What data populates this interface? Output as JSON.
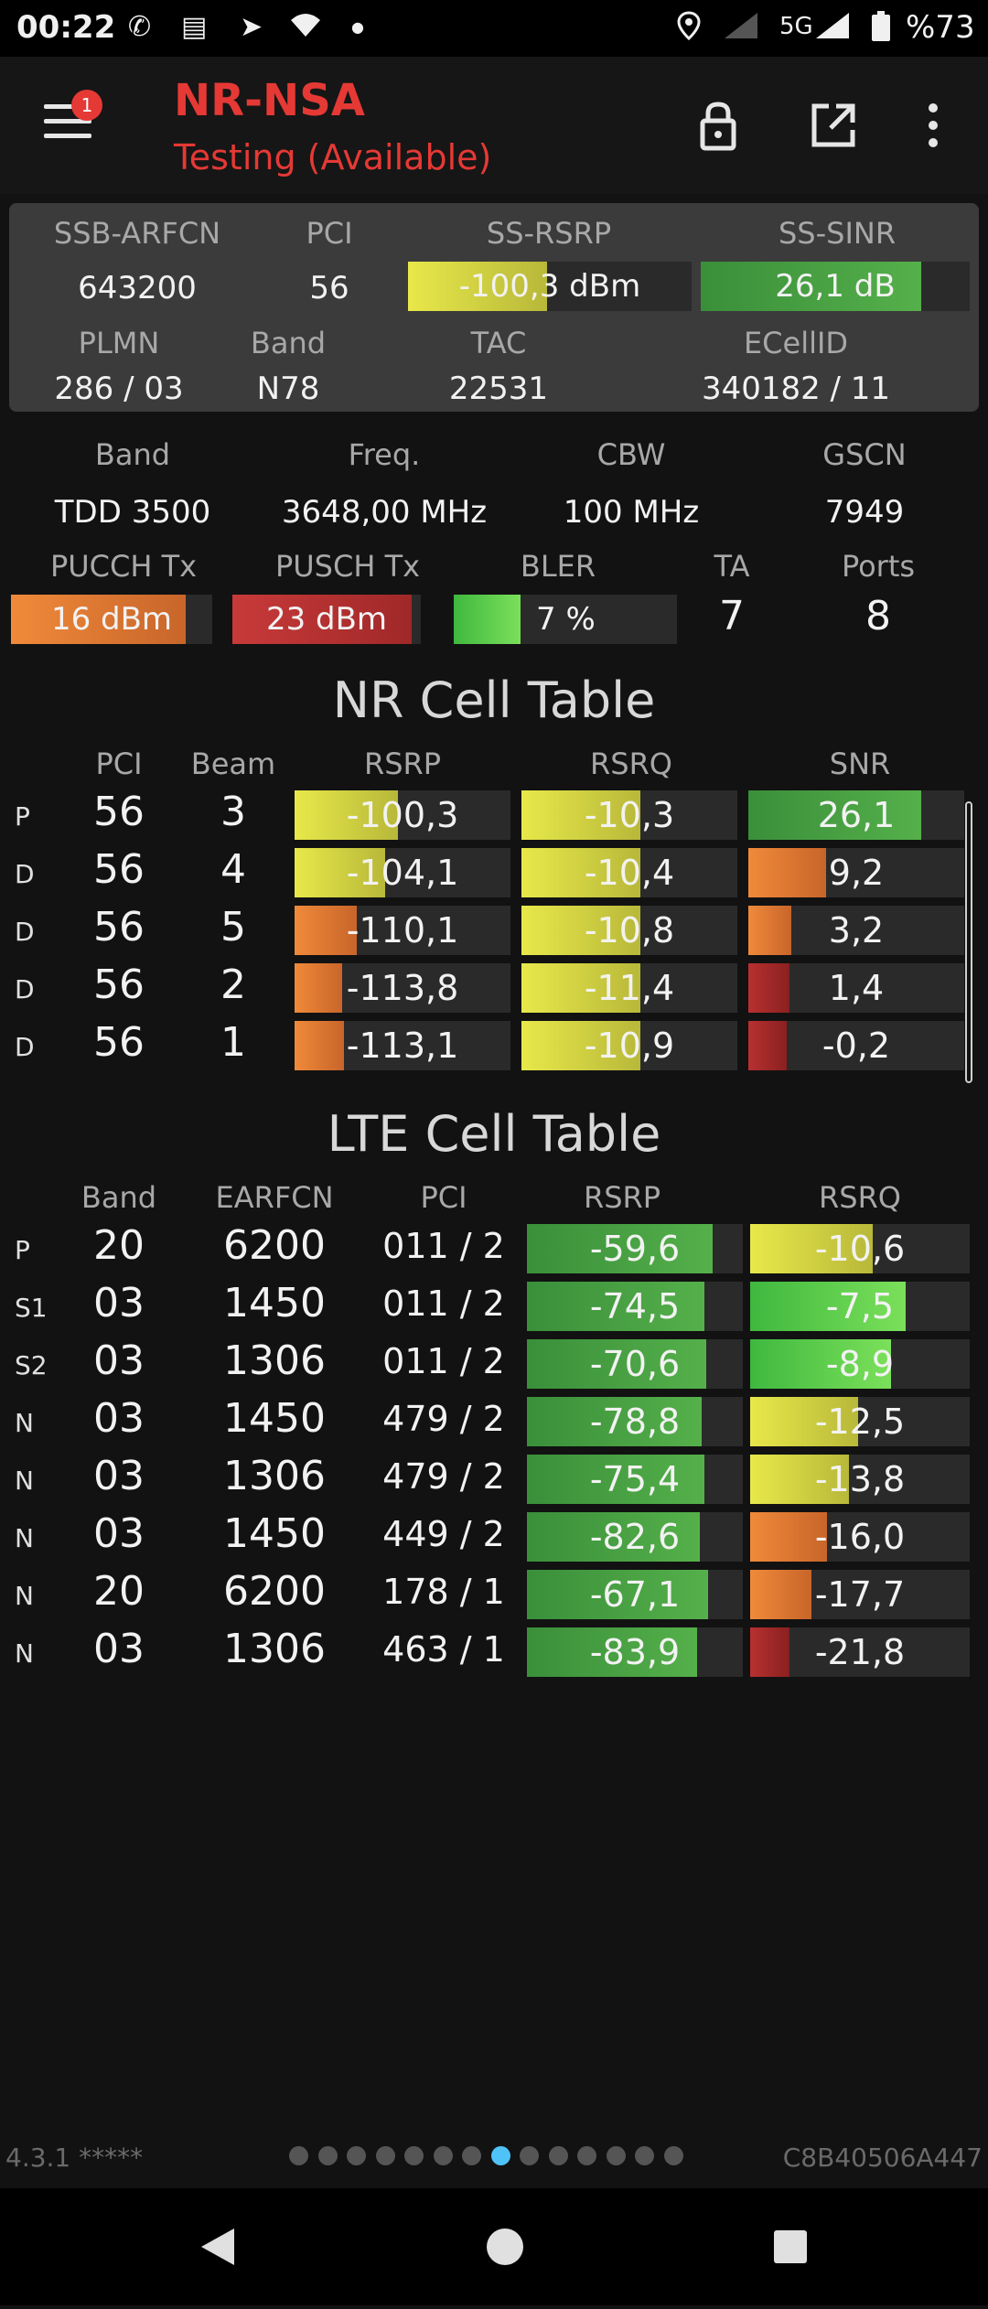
{
  "status": {
    "time": "00:22",
    "net": "5G",
    "battery": "%73"
  },
  "app": {
    "title": "NR-NSA",
    "subtitle": "Testing (Available)",
    "badge": "1"
  },
  "summary": {
    "labels": [
      "SSB-ARFCN",
      "PCI",
      "SS-RSRP",
      "SS-SINR",
      "PLMN",
      "Band",
      "TAC",
      "ECellID"
    ],
    "ssb_arfcn": "643200",
    "pci": "56",
    "ss_rsrp": "-100,3 dBm",
    "ss_sinr": "26,1 dB",
    "plmn": "286 / 03",
    "band": "N78",
    "tac": "22531",
    "ecellid": "340182 / 11",
    "ss_rsrp_level": 0.49,
    "ss_sinr_level": 0.82
  },
  "radio": {
    "labels": [
      "Band",
      "Freq.",
      "CBW",
      "GSCN",
      "PUCCH Tx",
      "PUSCH Tx",
      "BLER",
      "TA",
      "Ports"
    ],
    "band": "TDD 3500",
    "freq": "3648,00 MHz",
    "cbw": "100 MHz",
    "gscn": "7949",
    "pucch": "16 dBm",
    "pusch": "23 dBm",
    "bler": "7 %",
    "ta": "7",
    "ports": "8",
    "pucch_level": 0.87,
    "pusch_level": 0.95,
    "bler_level": 0.3
  },
  "nr_table": {
    "title": "NR Cell Table",
    "headers": [
      "PCI",
      "Beam",
      "RSRP",
      "RSRQ",
      "SNR"
    ],
    "rows": [
      {
        "tag": "P",
        "pci": "56",
        "beam": "3",
        "rsrp": "-100,3",
        "rsrq": "-10,3",
        "snr": "26,1",
        "rsrp_level": 0.48,
        "rsrq_level": 0.55,
        "snr_level": 0.8
      },
      {
        "tag": "D",
        "pci": "56",
        "beam": "4",
        "rsrp": "-104,1",
        "rsrq": "-10,4",
        "snr": "9,2",
        "rsrp_level": 0.42,
        "rsrq_level": 0.55,
        "snr_level": 0.36
      },
      {
        "tag": "D",
        "pci": "56",
        "beam": "5",
        "rsrp": "-110,1",
        "rsrq": "-10,8",
        "snr": "3,2",
        "rsrp_level": 0.29,
        "rsrq_level": 0.55,
        "snr_level": 0.2
      },
      {
        "tag": "D",
        "pci": "56",
        "beam": "2",
        "rsrp": "-113,8",
        "rsrq": "-11,4",
        "snr": "1,4",
        "rsrp_level": 0.22,
        "rsrq_level": 0.55,
        "snr_level": 0.19
      },
      {
        "tag": "D",
        "pci": "56",
        "beam": "1",
        "rsrp": "-113,1",
        "rsrq": "-10,9",
        "snr": "-0,2",
        "rsrp_level": 0.23,
        "rsrq_level": 0.55,
        "snr_level": 0.18
      }
    ]
  },
  "lte_table": {
    "title": "LTE Cell Table",
    "headers": [
      "Band",
      "EARFCN",
      "PCI",
      "RSRP",
      "RSRQ"
    ],
    "rows": [
      {
        "tag": "P",
        "band": "20",
        "earfcn": "6200",
        "pci": "011 / 2",
        "rsrp": "-59,6",
        "rsrq": "-10,6",
        "rsrp_level": 0.86,
        "rsrq_level": 0.56
      },
      {
        "tag": "S1",
        "band": "03",
        "earfcn": "1450",
        "pci": "011 / 2",
        "rsrp": "-74,5",
        "rsrq": "-7,5",
        "rsrp_level": 0.82,
        "rsrq_level": 0.71
      },
      {
        "tag": "S2",
        "band": "03",
        "earfcn": "1306",
        "pci": "011 / 2",
        "rsrp": "-70,6",
        "rsrq": "-8,9",
        "rsrp_level": 0.83,
        "rsrq_level": 0.64
      },
      {
        "tag": "N",
        "band": "03",
        "earfcn": "1450",
        "pci": "479 / 2",
        "rsrp": "-78,8",
        "rsrq": "-12,5",
        "rsrp_level": 0.81,
        "rsrq_level": 0.49
      },
      {
        "tag": "N",
        "band": "03",
        "earfcn": "1306",
        "pci": "479 / 2",
        "rsrp": "-75,4",
        "rsrq": "-13,8",
        "rsrp_level": 0.82,
        "rsrq_level": 0.45
      },
      {
        "tag": "N",
        "band": "03",
        "earfcn": "1450",
        "pci": "449 / 2",
        "rsrp": "-82,6",
        "rsrq": "-16,0",
        "rsrp_level": 0.8,
        "rsrq_level": 0.35
      },
      {
        "tag": "N",
        "band": "20",
        "earfcn": "6200",
        "pci": "178 / 1",
        "rsrp": "-67,1",
        "rsrq": "-17,7",
        "rsrp_level": 0.84,
        "rsrq_level": 0.28
      },
      {
        "tag": "N",
        "band": "03",
        "earfcn": "1306",
        "pci": "463 / 1",
        "rsrp": "-83,9",
        "rsrq": "-21,8",
        "rsrp_level": 0.79,
        "rsrq_level": 0.18
      }
    ]
  },
  "footer": {
    "version": "4.3.1 *****",
    "device_id": "C8B40506A447",
    "page_count": 14,
    "active_page": 7
  },
  "colors": {
    "red": "#e53935",
    "green": "#4caf50",
    "yellow": "#e0e040",
    "orange": "#e07a30",
    "darkred": "#b02828"
  }
}
